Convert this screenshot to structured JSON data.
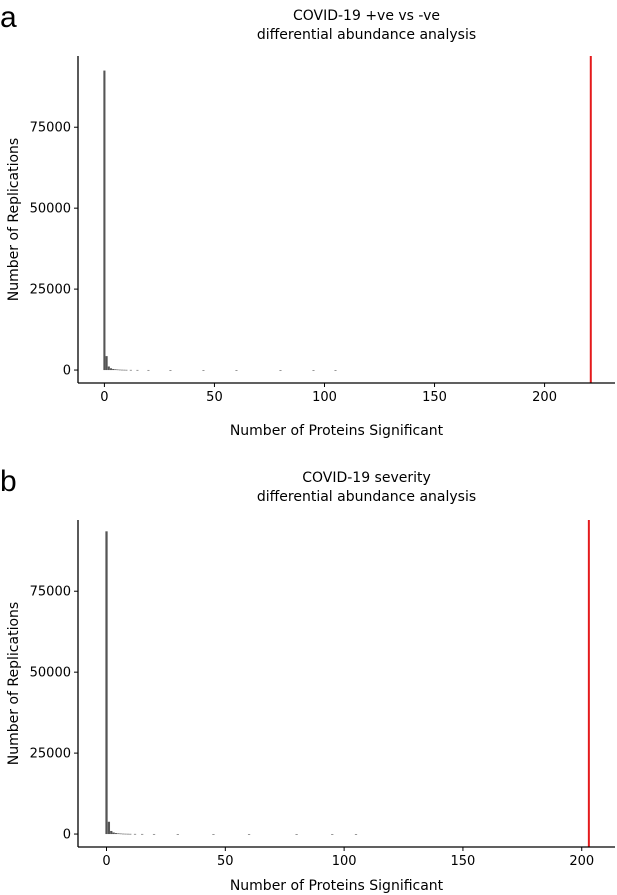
{
  "figure": {
    "panel_a_letter": "a",
    "panel_b_letter": "b"
  },
  "colors": {
    "bar": "#555555",
    "observed_line": "#e41a1c",
    "axis": "#000000",
    "text": "#000000"
  },
  "chart_data": [
    {
      "type": "bar",
      "panel": "a",
      "title": [
        "COVID-19 +ve vs -ve",
        "differential abundance analysis"
      ],
      "xlabel": "Number of Proteins Significant",
      "ylabel": "Number of Replications",
      "xlim": [
        -12,
        232
      ],
      "ylim": [
        -4000,
        97000
      ],
      "xticks": [
        0,
        50,
        100,
        150,
        200
      ],
      "xtick_labels": [
        "0",
        "50",
        "100",
        "150",
        "200"
      ],
      "yticks": [
        0,
        25000,
        50000,
        75000
      ],
      "ytick_labels": [
        "0",
        "25000",
        "50000",
        "75000"
      ],
      "grid": false,
      "observed_value": 221,
      "x": [
        0,
        1,
        2,
        3,
        4,
        5,
        6,
        7,
        8,
        9,
        10,
        12,
        15,
        20,
        30,
        45,
        60,
        80,
        95,
        105
      ],
      "values": [
        92500,
        4300,
        1100,
        550,
        330,
        220,
        160,
        120,
        95,
        80,
        65,
        50,
        35,
        22,
        12,
        7,
        5,
        3,
        2,
        1
      ]
    },
    {
      "type": "bar",
      "panel": "b",
      "title": [
        "COVID-19 severity",
        "differential abundance analysis"
      ],
      "xlabel": "Number of Proteins Significant",
      "ylabel": "Number of Replications",
      "xlim": [
        -12,
        214
      ],
      "ylim": [
        -4000,
        97000
      ],
      "xticks": [
        0,
        50,
        100,
        150,
        200
      ],
      "xtick_labels": [
        "0",
        "50",
        "100",
        "150",
        "200"
      ],
      "yticks": [
        0,
        25000,
        50000,
        75000
      ],
      "ytick_labels": [
        "0",
        "25000",
        "50000",
        "75000"
      ],
      "grid": false,
      "observed_value": 203,
      "x": [
        0,
        1,
        2,
        3,
        4,
        5,
        6,
        7,
        8,
        9,
        10,
        12,
        15,
        20,
        30,
        45,
        60,
        80,
        95,
        105
      ],
      "values": [
        93500,
        3800,
        950,
        480,
        300,
        200,
        150,
        110,
        90,
        75,
        60,
        45,
        32,
        20,
        11,
        6,
        4,
        3,
        2,
        1
      ]
    }
  ]
}
